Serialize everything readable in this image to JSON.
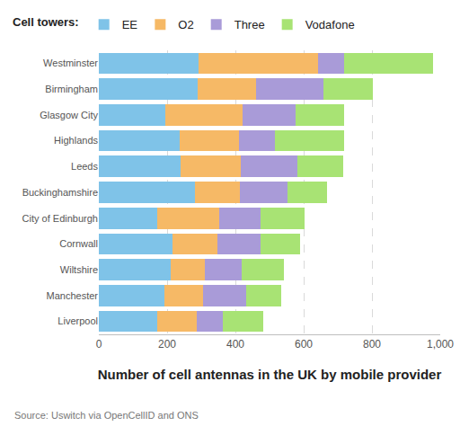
{
  "chart_data": {
    "type": "bar",
    "orientation": "horizontal",
    "stacked": true,
    "xlabel": "Number of cell antennas in the UK by mobile provider",
    "legend_title": "Cell towers:",
    "source": "Source: Uswitch via OpenCellID and ONS",
    "legend": "top left",
    "grid": true,
    "categories": [
      "Westminster",
      "Birmingham",
      "Glasgow City",
      "Highlands",
      "Leeds",
      "Buckinghamshire",
      "City of Edinburgh",
      "Cornwall",
      "Wiltshire",
      "Manchester",
      "Liverpool"
    ],
    "series": [
      {
        "name": "EE",
        "color": "#7fc3e8",
        "values": [
          292,
          289,
          195,
          237,
          239,
          282,
          171,
          216,
          211,
          192,
          171
        ]
      },
      {
        "name": "O2",
        "color": "#f6b966",
        "values": [
          350,
          172,
          226,
          174,
          177,
          131,
          182,
          131,
          100,
          113,
          116
        ]
      },
      {
        "name": "Three",
        "color": "#a99bd8",
        "values": [
          76,
          197,
          155,
          105,
          166,
          140,
          121,
          127,
          107,
          127,
          76
        ]
      },
      {
        "name": "Vodafone",
        "color": "#a8e374",
        "values": [
          261,
          145,
          142,
          202,
          134,
          115,
          129,
          115,
          124,
          102,
          119
        ]
      }
    ],
    "xlim": [
      0,
      1000
    ],
    "xticks": [
      0,
      200,
      400,
      600,
      800,
      {
        "value": 1000,
        "label": "1,000"
      }
    ]
  }
}
